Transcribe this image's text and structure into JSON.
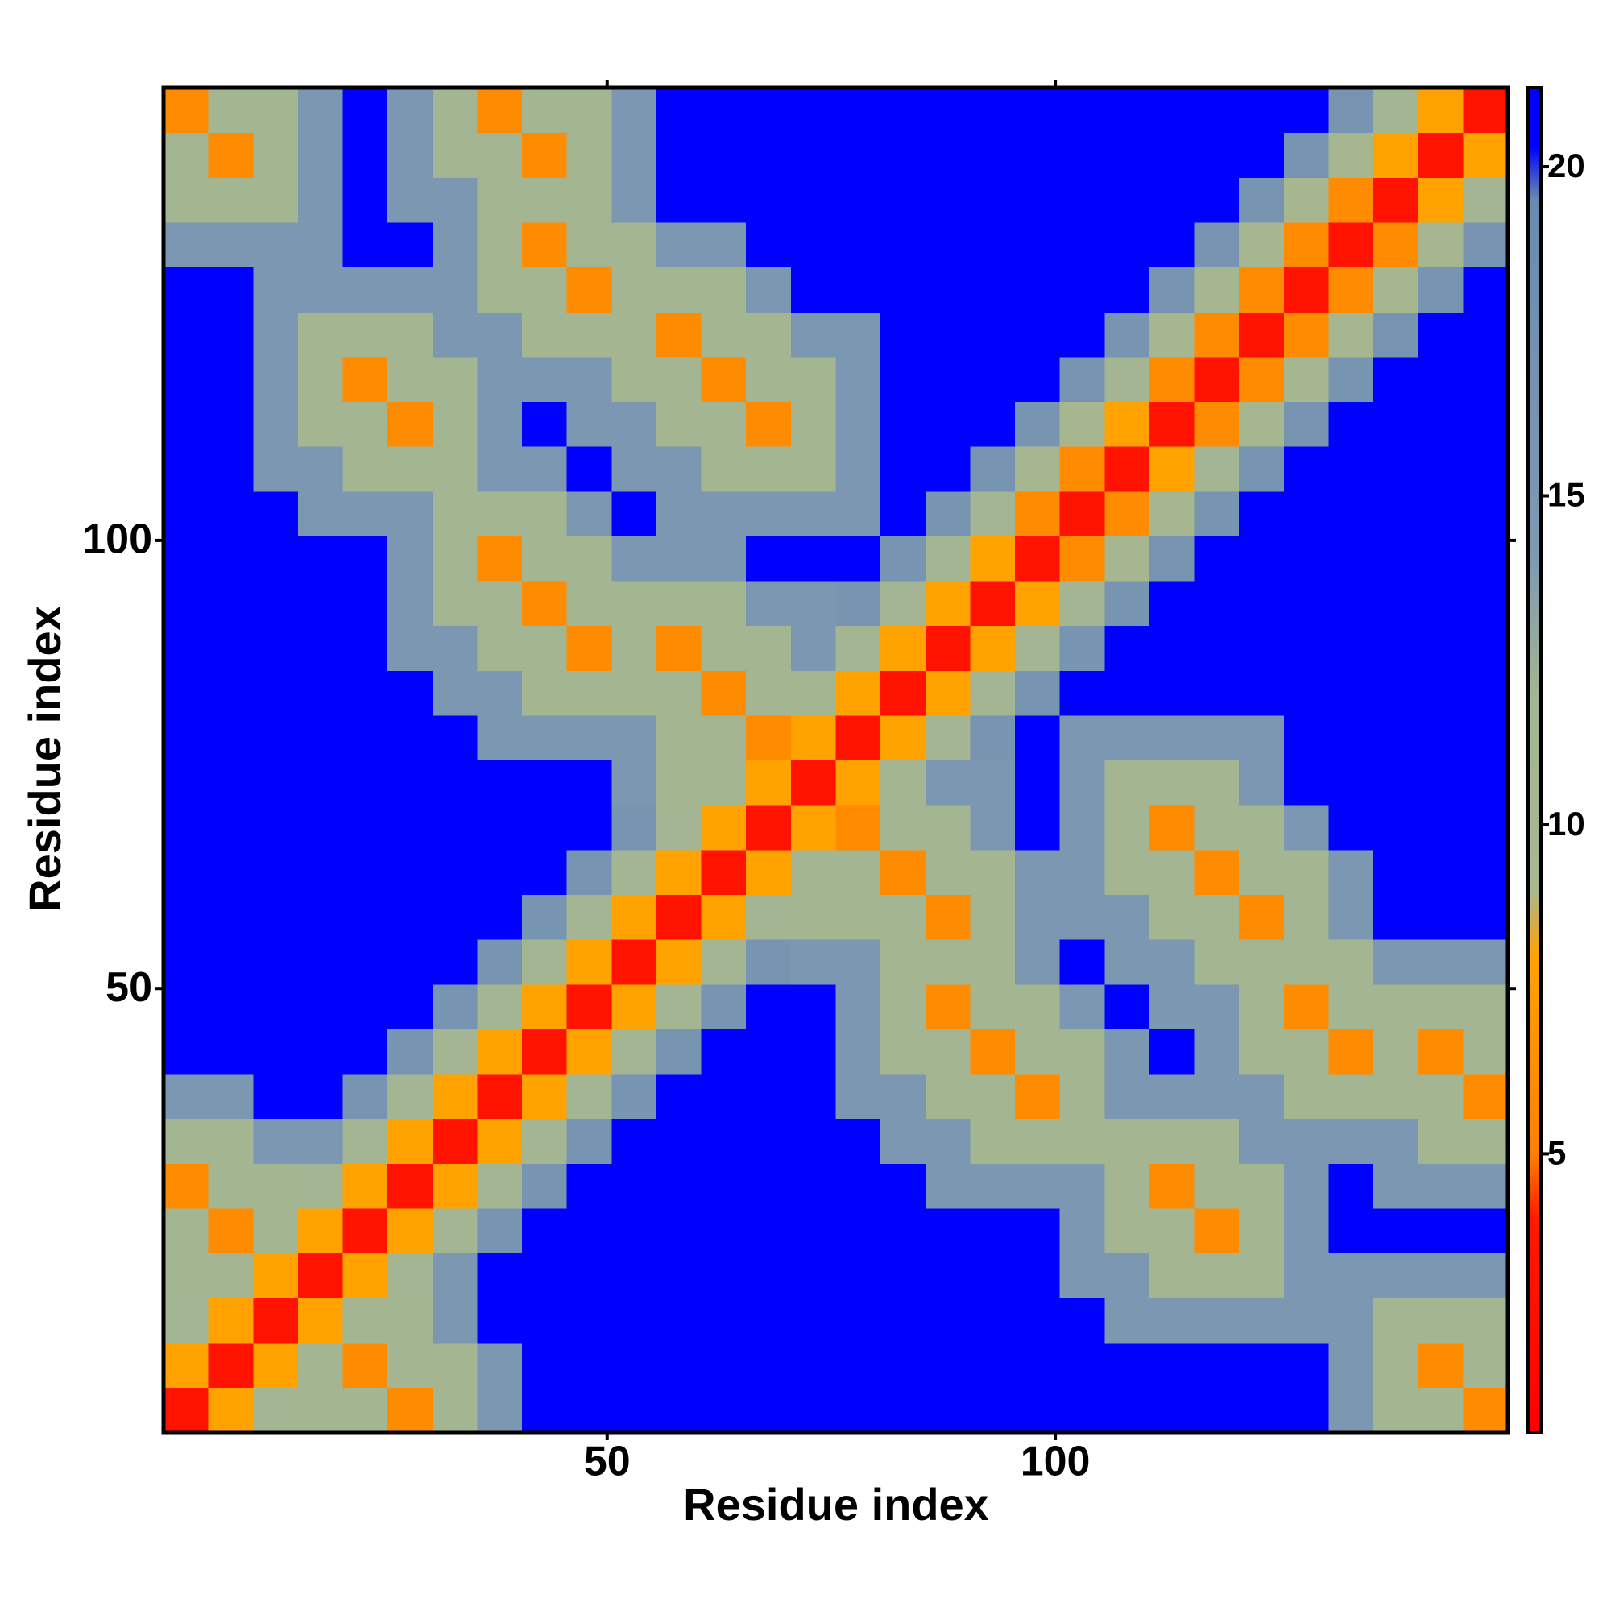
{
  "chart_data": {
    "type": "heatmap",
    "xlabel": "Residue index",
    "ylabel": "Residue index",
    "x": [
      3,
      8,
      13,
      18,
      23,
      28,
      33,
      38,
      43,
      48,
      53,
      58,
      63,
      68,
      73,
      78,
      83,
      88,
      93,
      98,
      103,
      108,
      113,
      118,
      123,
      128,
      133,
      138,
      143,
      148
    ],
    "y": [
      3,
      8,
      13,
      18,
      23,
      28,
      33,
      38,
      43,
      48,
      53,
      58,
      63,
      68,
      73,
      78,
      83,
      88,
      93,
      98,
      103,
      108,
      113,
      118,
      123,
      128,
      133,
      138,
      143,
      148
    ],
    "xlim": [
      0.5,
      150.5
    ],
    "ylim": [
      0.5,
      150.5
    ],
    "xticks": [
      50,
      100
    ],
    "yticks": [
      50,
      100
    ],
    "zlim": [
      0.77,
      21.2
    ],
    "zticks": [
      5,
      10,
      15,
      20
    ],
    "colorscale": [
      [
        0.77,
        "#ff0000"
      ],
      [
        4,
        "#ff1a00"
      ],
      [
        5,
        "#ff8000"
      ],
      [
        8,
        "#ffa200"
      ],
      [
        9,
        "#a7b88f"
      ],
      [
        12,
        "#a3b592"
      ],
      [
        14,
        "#7e9ab2"
      ],
      [
        19.5,
        "#6b8aae"
      ],
      [
        20.3,
        "#0000ff"
      ],
      [
        21.2,
        "#0000ff"
      ]
    ],
    "z": [
      [
        3,
        8,
        12,
        11,
        11,
        6,
        11,
        15,
        21,
        21,
        21,
        21,
        21,
        21,
        21,
        21,
        21,
        21,
        21,
        21,
        21,
        21,
        21,
        21,
        21,
        21,
        15,
        11,
        11,
        6
      ],
      [
        8,
        3,
        8,
        11,
        6,
        11,
        11,
        15,
        21,
        21,
        21,
        21,
        21,
        21,
        21,
        21,
        21,
        21,
        21,
        21,
        21,
        21,
        21,
        21,
        21,
        21,
        15,
        11,
        6,
        11
      ],
      [
        12,
        8,
        3,
        8,
        11,
        11,
        15,
        21,
        21,
        21,
        21,
        21,
        21,
        21,
        21,
        21,
        21,
        21,
        21,
        21,
        21,
        15,
        15,
        15,
        15,
        15,
        15,
        11,
        11,
        11
      ],
      [
        11,
        11,
        8,
        3,
        8,
        12,
        15,
        21,
        21,
        21,
        21,
        21,
        21,
        21,
        21,
        21,
        21,
        21,
        21,
        21,
        15,
        15,
        11,
        11,
        11,
        15,
        15,
        15,
        15,
        15
      ],
      [
        11,
        6,
        11,
        8,
        3,
        8,
        12,
        16,
        21,
        21,
        21,
        21,
        21,
        21,
        21,
        21,
        21,
        21,
        21,
        21,
        15,
        11,
        11,
        6,
        11,
        15,
        21,
        21,
        21,
        21
      ],
      [
        6,
        11,
        11,
        12,
        8,
        3,
        8,
        12,
        16,
        21,
        21,
        21,
        21,
        21,
        21,
        21,
        21,
        15,
        15,
        15,
        15,
        11,
        6,
        11,
        11,
        15,
        21,
        15,
        15,
        15
      ],
      [
        11,
        11,
        15,
        15,
        12,
        8,
        3,
        8,
        12,
        16,
        21,
        21,
        21,
        21,
        21,
        21,
        15,
        15,
        11,
        11,
        11,
        11,
        11,
        11,
        15,
        15,
        15,
        15,
        11,
        11
      ],
      [
        15,
        15,
        21,
        21,
        16,
        12,
        8,
        3,
        8,
        12,
        16,
        21,
        21,
        21,
        21,
        15,
        15,
        11,
        11,
        6,
        11,
        15,
        15,
        15,
        15,
        11,
        11,
        11,
        11,
        6
      ],
      [
        21,
        21,
        21,
        21,
        21,
        16,
        12,
        8,
        3,
        8,
        12,
        16,
        21,
        21,
        21,
        15,
        11,
        11,
        6,
        11,
        11,
        15,
        21,
        15,
        11,
        11,
        6,
        11,
        6,
        11
      ],
      [
        21,
        21,
        21,
        21,
        21,
        21,
        16,
        12,
        8,
        3,
        8,
        12,
        16,
        21,
        21,
        15,
        11,
        6,
        11,
        11,
        15,
        21,
        15,
        15,
        11,
        6,
        11,
        11,
        11,
        11
      ],
      [
        21,
        21,
        21,
        21,
        21,
        21,
        21,
        16,
        12,
        8,
        3,
        8,
        12,
        16,
        15,
        15,
        11,
        11,
        11,
        15,
        21,
        15,
        15,
        11,
        11,
        11,
        11,
        15,
        15,
        15
      ],
      [
        21,
        21,
        21,
        21,
        21,
        21,
        21,
        21,
        16,
        12,
        8,
        3,
        8,
        12,
        11,
        11,
        11,
        6,
        11,
        15,
        15,
        15,
        11,
        11,
        6,
        11,
        15,
        21,
        21,
        21
      ],
      [
        21,
        21,
        21,
        21,
        21,
        21,
        21,
        21,
        21,
        16,
        12,
        8,
        3,
        8,
        11,
        11,
        6,
        11,
        11,
        15,
        15,
        11,
        11,
        6,
        11,
        11,
        15,
        21,
        21,
        21
      ],
      [
        21,
        21,
        21,
        21,
        21,
        21,
        21,
        21,
        21,
        21,
        16,
        12,
        8,
        3,
        8,
        6,
        11,
        11,
        15,
        21,
        15,
        11,
        6,
        11,
        11,
        15,
        21,
        21,
        21,
        21
      ],
      [
        21,
        21,
        21,
        21,
        21,
        21,
        21,
        21,
        21,
        21,
        15,
        11,
        11,
        8,
        3,
        8,
        11,
        15,
        15,
        21,
        15,
        11,
        11,
        11,
        15,
        21,
        21,
        21,
        21,
        21
      ],
      [
        21,
        21,
        21,
        21,
        21,
        21,
        21,
        15,
        15,
        15,
        15,
        11,
        11,
        6,
        8,
        3,
        8,
        12,
        16,
        21,
        15,
        15,
        15,
        15,
        15,
        21,
        21,
        21,
        21,
        21
      ],
      [
        21,
        21,
        21,
        21,
        21,
        21,
        15,
        15,
        11,
        11,
        11,
        11,
        6,
        11,
        11,
        8,
        3,
        8,
        12,
        16,
        21,
        21,
        21,
        21,
        21,
        21,
        21,
        21,
        21,
        21
      ],
      [
        21,
        21,
        21,
        21,
        21,
        15,
        15,
        11,
        11,
        6,
        11,
        6,
        11,
        11,
        15,
        12,
        8,
        3,
        8,
        12,
        16,
        21,
        21,
        21,
        21,
        21,
        21,
        21,
        21,
        21
      ],
      [
        21,
        21,
        21,
        21,
        21,
        15,
        11,
        11,
        6,
        11,
        11,
        11,
        11,
        15,
        15,
        16,
        12,
        8,
        3,
        8,
        12,
        16,
        21,
        21,
        21,
        21,
        21,
        21,
        21,
        21
      ],
      [
        21,
        21,
        21,
        21,
        21,
        15,
        11,
        6,
        11,
        11,
        15,
        15,
        15,
        21,
        21,
        21,
        16,
        12,
        8,
        3,
        6,
        10,
        16,
        21,
        21,
        21,
        21,
        21,
        21,
        21
      ],
      [
        21,
        21,
        21,
        15,
        15,
        15,
        11,
        11,
        11,
        15,
        21,
        15,
        15,
        15,
        15,
        15,
        21,
        16,
        12,
        6,
        3,
        6,
        10,
        16,
        21,
        21,
        21,
        21,
        21,
        21
      ],
      [
        21,
        21,
        15,
        15,
        11,
        11,
        11,
        15,
        15,
        21,
        15,
        15,
        11,
        11,
        11,
        15,
        21,
        21,
        16,
        10,
        6,
        3,
        8,
        12,
        16,
        21,
        21,
        21,
        21,
        21
      ],
      [
        21,
        21,
        15,
        11,
        11,
        6,
        11,
        15,
        21,
        15,
        15,
        11,
        11,
        6,
        11,
        15,
        21,
        21,
        21,
        16,
        10,
        8,
        3,
        6,
        10,
        16,
        21,
        21,
        21,
        21
      ],
      [
        21,
        21,
        15,
        11,
        6,
        11,
        11,
        15,
        15,
        15,
        11,
        11,
        6,
        11,
        11,
        15,
        21,
        21,
        21,
        21,
        16,
        12,
        6,
        3,
        6,
        10,
        16,
        21,
        21,
        21
      ],
      [
        21,
        21,
        15,
        11,
        11,
        11,
        15,
        15,
        11,
        11,
        11,
        6,
        11,
        11,
        15,
        15,
        21,
        21,
        21,
        21,
        21,
        16,
        10,
        6,
        3,
        6,
        10,
        16,
        21,
        21
      ],
      [
        21,
        21,
        15,
        15,
        15,
        15,
        15,
        11,
        11,
        6,
        11,
        11,
        11,
        15,
        21,
        21,
        21,
        21,
        21,
        21,
        21,
        21,
        16,
        10,
        6,
        3,
        6,
        10,
        16,
        21
      ],
      [
        15,
        15,
        15,
        15,
        21,
        21,
        15,
        11,
        6,
        11,
        11,
        15,
        15,
        21,
        21,
        21,
        21,
        21,
        21,
        21,
        21,
        21,
        21,
        16,
        10,
        6,
        3,
        6,
        10,
        16
      ],
      [
        11,
        11,
        11,
        15,
        21,
        15,
        15,
        11,
        11,
        11,
        15,
        21,
        21,
        21,
        21,
        21,
        21,
        21,
        21,
        21,
        21,
        21,
        21,
        21,
        16,
        10,
        6,
        3,
        8,
        12
      ],
      [
        11,
        6,
        11,
        15,
        21,
        15,
        11,
        11,
        6,
        11,
        15,
        21,
        21,
        21,
        21,
        21,
        21,
        21,
        21,
        21,
        21,
        21,
        21,
        21,
        21,
        16,
        10,
        8,
        3,
        8
      ],
      [
        6,
        11,
        11,
        15,
        21,
        15,
        11,
        6,
        11,
        11,
        15,
        21,
        21,
        21,
        21,
        21,
        21,
        21,
        21,
        21,
        21,
        21,
        21,
        21,
        21,
        21,
        16,
        12,
        8,
        3
      ]
    ]
  }
}
